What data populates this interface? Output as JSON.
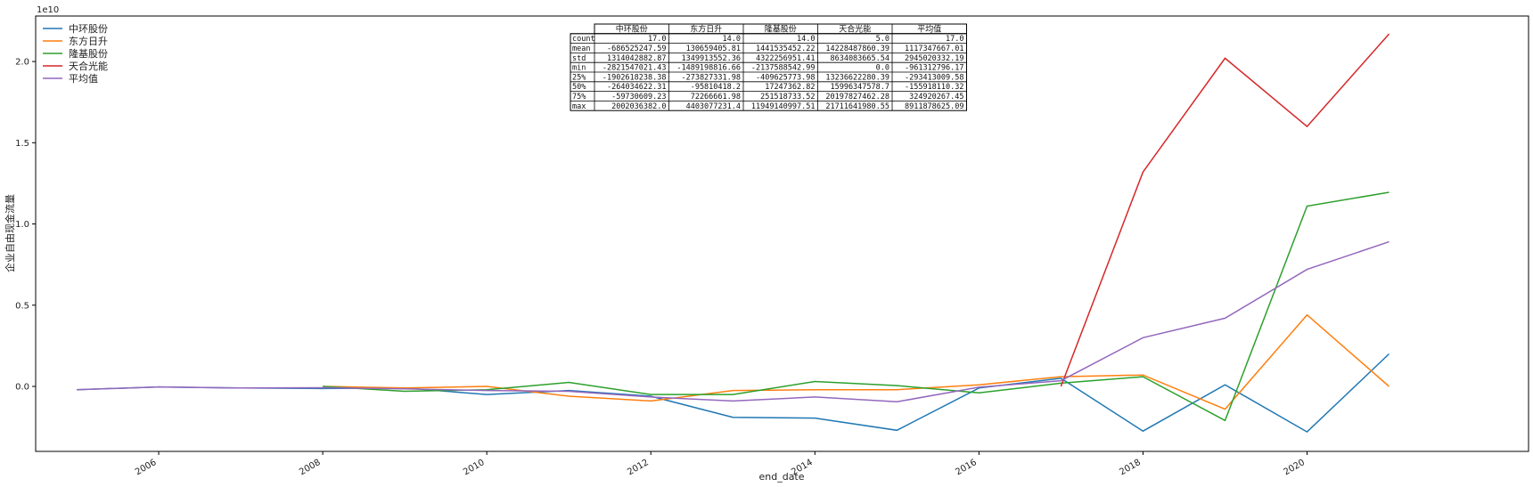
{
  "chart_data": {
    "type": "line",
    "title": "",
    "xlabel": "end_date",
    "ylabel": "企业自由现金流量",
    "y_offset_label": "1e10",
    "xlim": [
      2004.5,
      2022.7
    ],
    "ylim": [
      -4000000000.0,
      22800000000.0
    ],
    "x_ticks": [
      2006,
      2008,
      2010,
      2012,
      2014,
      2016,
      2018,
      2020
    ],
    "y_ticks": [
      0,
      5000000000,
      10000000000,
      15000000000,
      20000000000
    ],
    "y_tick_labels": [
      "0.0",
      "0.5",
      "1.0",
      "1.5",
      "2.0"
    ],
    "legend_position": "top-left",
    "grid": false,
    "series": [
      {
        "name": "中环股份",
        "color": "#1f77b4",
        "x": [
          2005,
          2006,
          2007,
          2008,
          2009,
          2010,
          2011,
          2012,
          2013,
          2014,
          2015,
          2016,
          2017,
          2018,
          2019,
          2020,
          2021
        ],
        "y": [
          -200000000,
          -30000000,
          -100000000,
          -130000000,
          -100000000,
          -500000000,
          -250000000,
          -600000000,
          -1900000000,
          -1950000000,
          -2700000000,
          -100000000,
          500000000,
          -2750000000,
          100000000,
          -2800000000,
          2000000000
        ]
      },
      {
        "name": "东方日升",
        "color": "#ff7f0e",
        "x": [
          2008,
          2009,
          2010,
          2011,
          2012,
          2013,
          2014,
          2015,
          2016,
          2017,
          2018,
          2019,
          2020,
          2021
        ],
        "y": [
          0,
          -100000000,
          0,
          -600000000,
          -900000000,
          -250000000,
          -200000000,
          -200000000,
          100000000,
          600000000,
          700000000,
          -1400000000,
          4400000000,
          0
        ]
      },
      {
        "name": "隆基股份",
        "color": "#2ca02c",
        "x": [
          2008,
          2009,
          2010,
          2011,
          2012,
          2013,
          2014,
          2015,
          2016,
          2017,
          2018,
          2019,
          2020,
          2021
        ],
        "y": [
          0,
          -300000000,
          -200000000,
          250000000,
          -500000000,
          -500000000,
          300000000,
          50000000,
          -400000000,
          200000000,
          600000000,
          -2100000000,
          11100000000,
          11950000000
        ]
      },
      {
        "name": "天合光能",
        "color": "#d62728",
        "x": [
          2017,
          2018,
          2019,
          2020,
          2021
        ],
        "y": [
          0,
          13200000000,
          20200000000,
          16000000000,
          21700000000
        ]
      },
      {
        "name": "平均值",
        "color": "#9467bd",
        "x": [
          2005,
          2006,
          2007,
          2008,
          2009,
          2010,
          2011,
          2012,
          2013,
          2014,
          2015,
          2016,
          2017,
          2018,
          2019,
          2020,
          2021
        ],
        "y": [
          -200000000,
          -30000000,
          -100000000,
          -80000000,
          -150000000,
          -250000000,
          -300000000,
          -650000000,
          -900000000,
          -650000000,
          -950000000,
          -50000000,
          350000000,
          3000000000,
          4200000000,
          7200000000,
          8900000000
        ]
      }
    ],
    "table": {
      "columns": [
        "中环股份",
        "东方日升",
        "隆基股份",
        "天合光能",
        "平均值"
      ],
      "rows": [
        {
          "label": "count",
          "values": [
            "17.0",
            "14.0",
            "14.0",
            "5.0",
            "17.0"
          ]
        },
        {
          "label": "mean",
          "values": [
            "-686525247.59",
            "130659405.81",
            "1441535452.22",
            "14228487860.39",
            "1117347667.01"
          ]
        },
        {
          "label": "std",
          "values": [
            "1314042882.87",
            "1349913552.36",
            "4322256951.41",
            "8634083665.54",
            "2945020332.19"
          ]
        },
        {
          "label": "min",
          "values": [
            "-2821547021.43",
            "-1489198816.66",
            "-2137588542.99",
            "0.0",
            "-961312796.17"
          ]
        },
        {
          "label": "25%",
          "values": [
            "-1902618238.38",
            "-273827331.98",
            "-409625773.98",
            "13236622280.39",
            "-293413009.58"
          ]
        },
        {
          "label": "50%",
          "values": [
            "-264034622.31",
            "-95810418.2",
            "17247362.82",
            "15996347578.7",
            "-155918110.32"
          ]
        },
        {
          "label": "75%",
          "values": [
            "-59730609.23",
            "72266661.98",
            "251518733.52",
            "20197827462.28",
            "324920267.45"
          ]
        },
        {
          "label": "max",
          "values": [
            "2002036382.0",
            "4403077231.4",
            "11949140997.51",
            "21711641980.55",
            "8911878625.09"
          ]
        }
      ]
    }
  }
}
